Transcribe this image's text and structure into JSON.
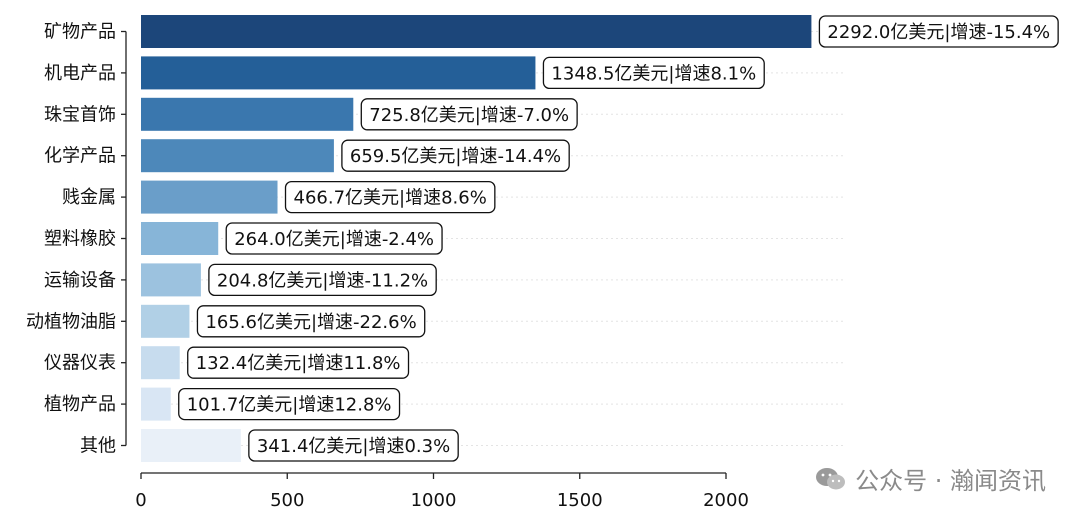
{
  "chart_data": {
    "type": "bar",
    "orientation": "horizontal",
    "categories": [
      "矿物产品",
      "机电产品",
      "珠宝首饰",
      "化学产品",
      "贱金属",
      "塑料橡胶",
      "运输设备",
      "动植物油脂",
      "仪器仪表",
      "植物产品",
      "其他"
    ],
    "values": [
      2292.0,
      1348.5,
      725.8,
      659.5,
      466.7,
      264.0,
      204.8,
      165.6,
      132.4,
      101.7,
      341.4
    ],
    "data_labels": [
      "2292.0亿美元|增速-15.4%",
      "1348.5亿美元|增速8.1%",
      "725.8亿美元|增速-7.0%",
      "659.5亿美元|增速-14.4%",
      "466.7亿美元|增速8.6%",
      "264.0亿美元|增速-2.4%",
      "204.8亿美元|增速-11.2%",
      "165.6亿美元|增速-22.6%",
      "132.4亿美元|增速11.8%",
      "101.7亿美元|增速12.8%",
      "341.4亿美元|增速0.3%"
    ],
    "xticks": [
      0,
      500,
      1000,
      1500,
      2000
    ],
    "xlim": [
      0,
      2400
    ],
    "colors": [
      "#1c467a",
      "#245f98",
      "#3a77ae",
      "#4d88ba",
      "#6a9ec9",
      "#87b5d8",
      "#9cc2df",
      "#b1d0e6",
      "#c7dcee",
      "#d9e6f4",
      "#e9f0f8"
    ],
    "grid": "horizontal dotted, light"
  },
  "watermark": {
    "text": "公众号 · 瀚闻资讯",
    "icon": "wechat-icon"
  }
}
